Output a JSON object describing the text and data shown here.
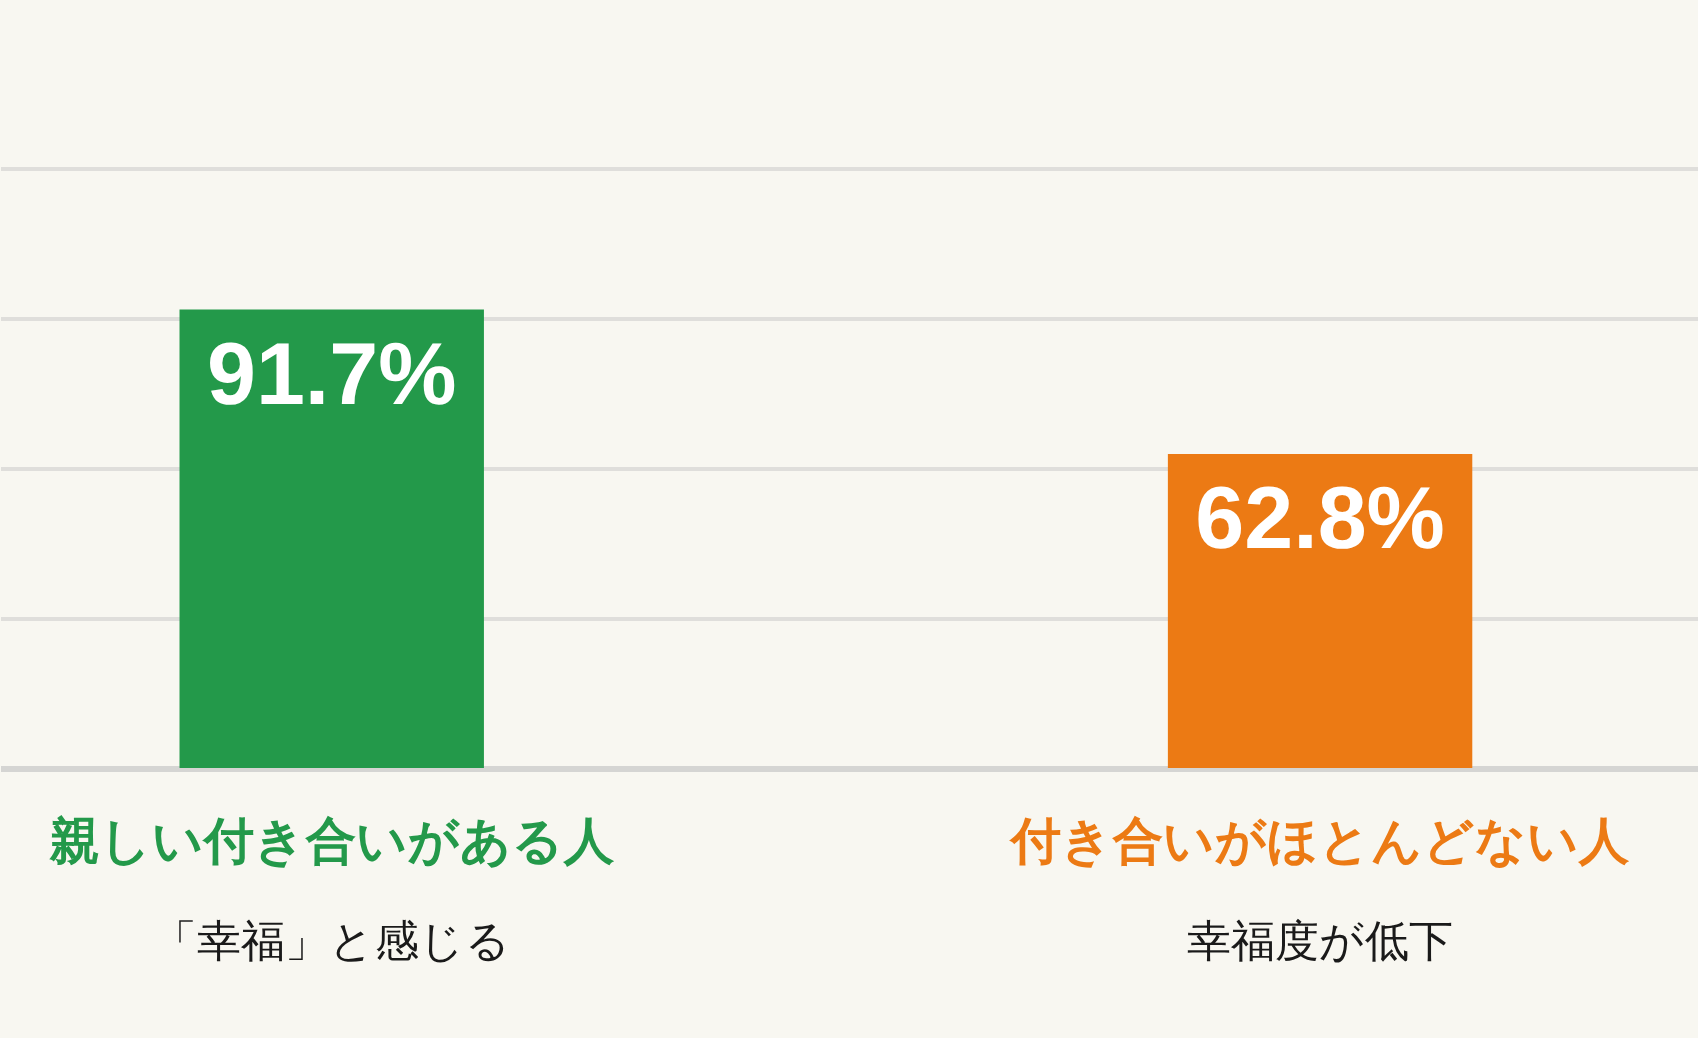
{
  "chart_data": {
    "type": "bar",
    "categories": [
      "親しい付き合いがある人",
      "付き合いがほとんどない人"
    ],
    "values": [
      91.7,
      62.8
    ],
    "colors": [
      "#23994a",
      "#ec7a14"
    ],
    "value_labels": [
      "91.7%",
      "62.8%"
    ],
    "ylim": [
      0,
      120
    ],
    "yticks": [
      {
        "value": 0,
        "label": null
      },
      {
        "value": 30,
        "label": null
      },
      {
        "value": 60,
        "label": null
      },
      {
        "value": 90,
        "label": null
      },
      {
        "value": 120,
        "label": null
      }
    ],
    "grid": "y",
    "tick_labels": "x",
    "annotations": [
      "「幸福」と感じる",
      "幸福度が低下"
    ]
  }
}
